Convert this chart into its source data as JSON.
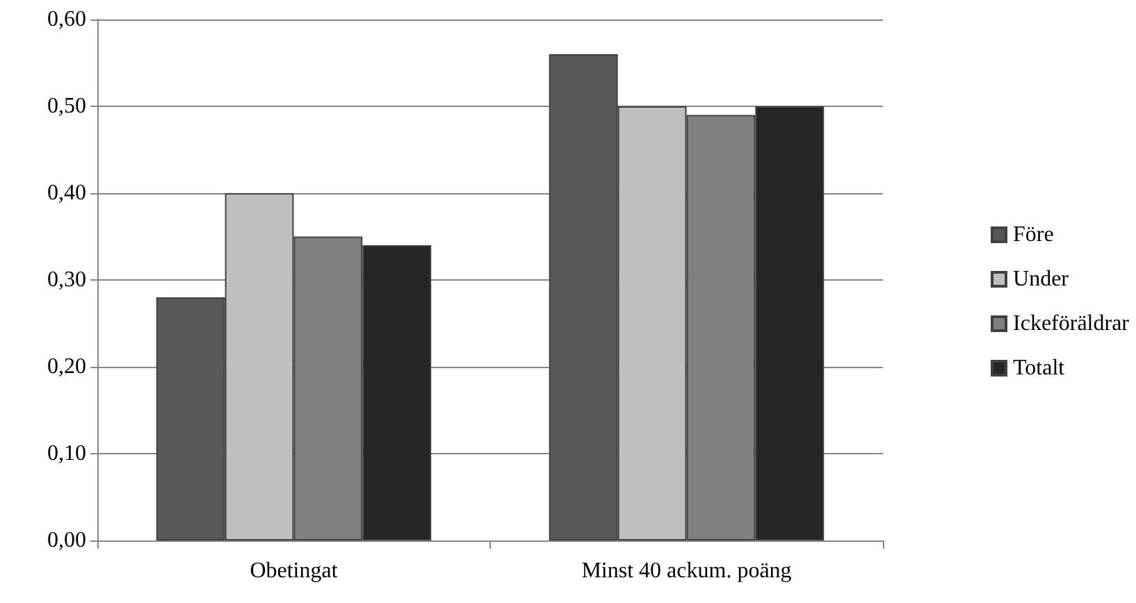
{
  "chart_data": {
    "type": "bar",
    "categories": [
      "Obetingat",
      "Minst 40 ackum. poäng"
    ],
    "series": [
      {
        "name": "Före",
        "color": "#595959",
        "values": [
          0.28,
          0.56
        ]
      },
      {
        "name": "Under",
        "color": "#bfbfbf",
        "values": [
          0.4,
          0.5
        ]
      },
      {
        "name": "Ickeföräldrar",
        "color": "#808080",
        "values": [
          0.35,
          0.49
        ]
      },
      {
        "name": "Totalt",
        "color": "#262626",
        "values": [
          0.34,
          0.5
        ]
      }
    ],
    "ylim": [
      0,
      0.6
    ],
    "yticks": [
      {
        "value": 0,
        "label": "0,00"
      },
      {
        "value": 0.1,
        "label": "0,10"
      },
      {
        "value": 0.2,
        "label": "0,20"
      },
      {
        "value": 0.3,
        "label": "0,30"
      },
      {
        "value": 0.4,
        "label": "0,40"
      },
      {
        "value": 0.5,
        "label": "0,50"
      },
      {
        "value": 0.6,
        "label": "0,60"
      }
    ],
    "grid": "y",
    "legend": "right"
  }
}
